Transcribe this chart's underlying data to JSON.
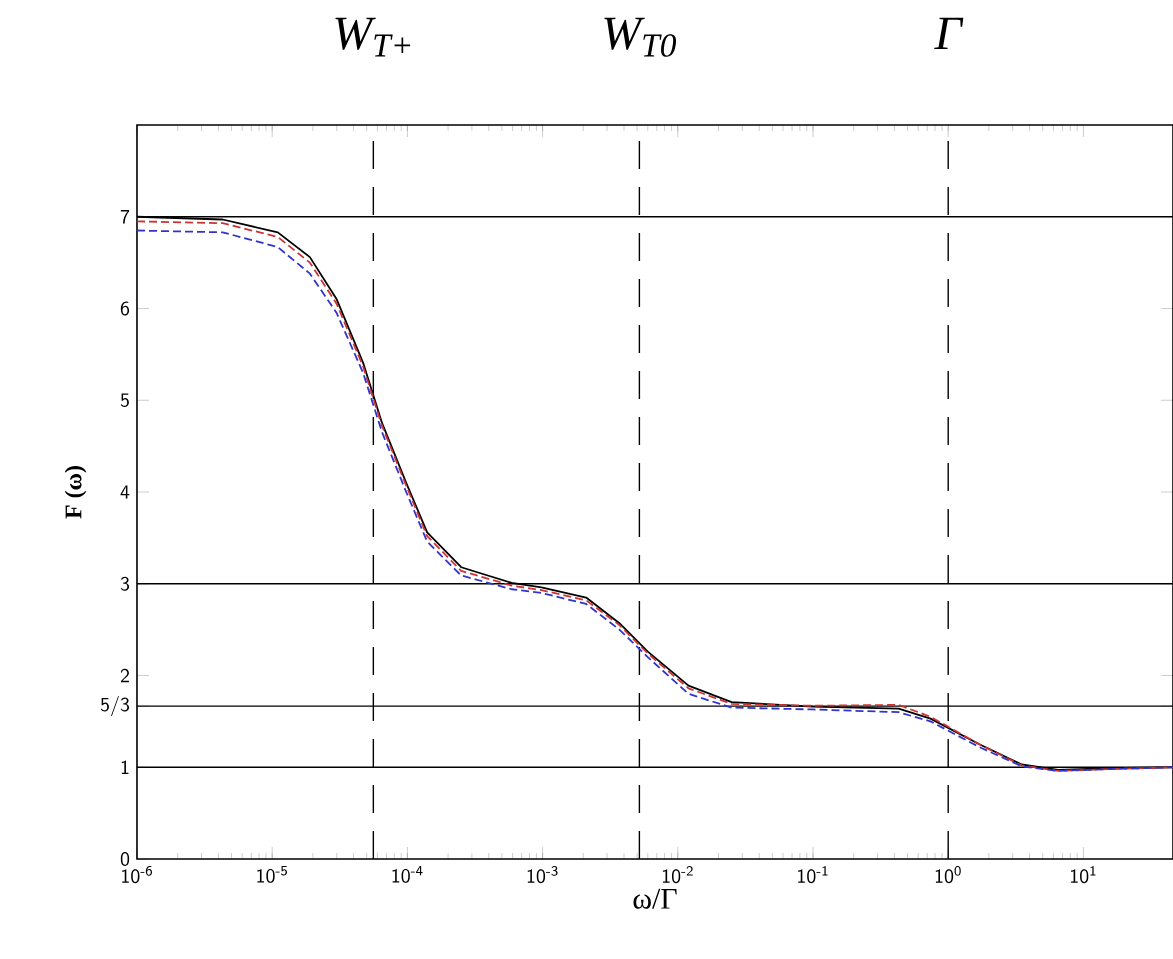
{
  "chart_data": {
    "type": "line",
    "xlabel": "ω/Γ",
    "ylabel": "F (ω)",
    "log": "x",
    "xlim": [
      1e-06,
      46
    ],
    "ylim": [
      0,
      8
    ],
    "xticks": [
      {
        "value": 1e-06,
        "label": "10$^{-6}$"
      },
      {
        "value": 1e-05,
        "label": "10$^{-5}$"
      },
      {
        "value": 0.0001,
        "label": "10$^{-4}$"
      },
      {
        "value": 0.001,
        "label": "10$^{-3}$"
      },
      {
        "value": 0.01,
        "label": "10$^{-2}$"
      },
      {
        "value": 0.1,
        "label": "10$^{-1}$"
      },
      {
        "value": 1,
        "label": "10$^{0}$"
      },
      {
        "value": 10,
        "label": "10$^{1}$"
      }
    ],
    "yticks": [
      0,
      1,
      {
        "value": 1.6667,
        "label": "5/3"
      },
      2,
      3,
      4,
      5,
      6,
      7
    ],
    "x": [
      1e-06,
      4.3e-06,
      1.1e-05,
      1.9e-05,
      3e-05,
      4.7e-05,
      6.5e-05,
      9.8e-05,
      0.00014,
      0.00025,
      0.00059,
      0.00098,
      0.0021,
      0.0037,
      0.006,
      0.012,
      0.025,
      0.1,
      0.43,
      0.74,
      1.7,
      3.5,
      6.5,
      16,
      46
    ],
    "series": [
      {
        "color": "#000000",
        "line_style": "solid",
        "values": [
          7.0,
          6.97,
          6.83,
          6.56,
          6.1,
          5.41,
          4.75,
          4.1,
          3.56,
          3.18,
          3.01,
          2.96,
          2.85,
          2.57,
          2.26,
          1.89,
          1.71,
          1.66,
          1.64,
          1.53,
          1.25,
          1.03,
          0.97,
          0.99,
          1.0
        ]
      },
      {
        "color": "#cc3333",
        "line_style": "dashed",
        "values": [
          6.95,
          6.93,
          6.78,
          6.5,
          6.05,
          5.37,
          4.72,
          4.07,
          3.52,
          3.14,
          2.98,
          2.93,
          2.82,
          2.55,
          2.24,
          1.86,
          1.69,
          1.67,
          1.68,
          1.55,
          1.25,
          1.02,
          0.96,
          0.98,
          1.0
        ]
      },
      {
        "color": "#3333cc",
        "line_style": "dashed",
        "values": [
          6.85,
          6.83,
          6.67,
          6.38,
          5.95,
          5.3,
          4.65,
          4.0,
          3.46,
          3.09,
          2.94,
          2.9,
          2.78,
          2.5,
          2.2,
          1.8,
          1.65,
          1.63,
          1.6,
          1.5,
          1.22,
          1.01,
          0.96,
          0.98,
          1.0
        ]
      }
    ],
    "ref_lines": [
      {
        "axis": "y",
        "value": 7,
        "color": "#000000",
        "line_style": "solid"
      },
      {
        "axis": "y",
        "value": 3,
        "color": "#000000",
        "line_style": "solid"
      },
      {
        "axis": "y",
        "value": 1.6667,
        "color": "#000000",
        "line_style": "solid"
      },
      {
        "axis": "y",
        "value": 1,
        "color": "#000000",
        "line_style": "solid"
      },
      {
        "axis": "x",
        "value": 5.6e-05,
        "label": "W$_{T+}$",
        "color": "#000000",
        "line_style": "dashed"
      },
      {
        "axis": "x",
        "value": 0.0052,
        "label": "W$_{T0}$",
        "color": "#000000",
        "line_style": "dashed"
      },
      {
        "axis": "x",
        "value": 1.0,
        "label": "Γ",
        "color": "#000000",
        "line_style": "dashed"
      }
    ]
  }
}
